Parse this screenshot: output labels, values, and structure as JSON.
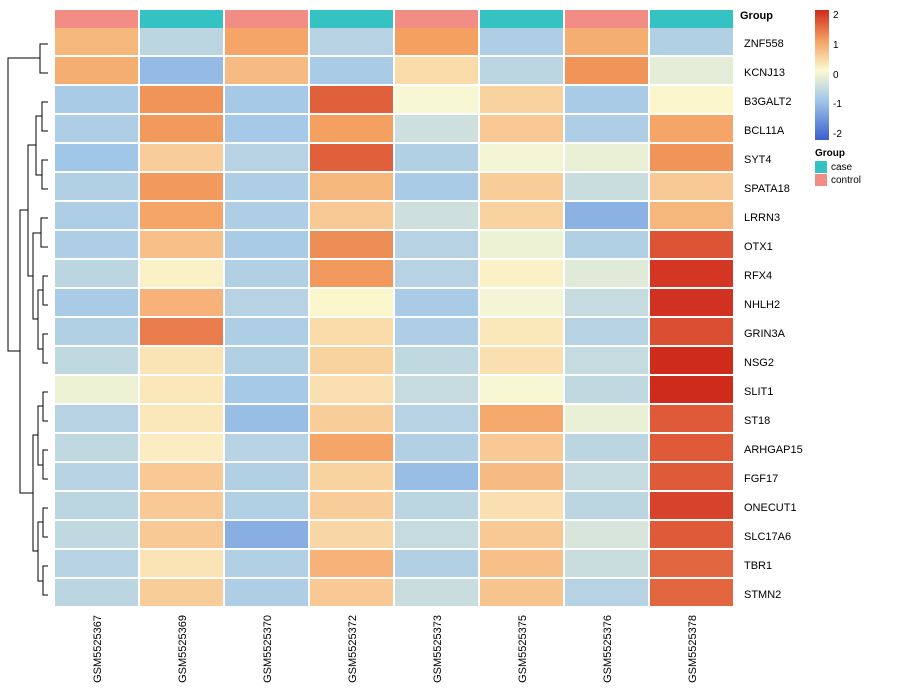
{
  "columns": [
    "GSM5525367",
    "GSM5525369",
    "GSM5525370",
    "GSM5525372",
    "GSM5525373",
    "GSM5525375",
    "GSM5525376",
    "GSM5525378"
  ],
  "column_groups": [
    "control",
    "case",
    "control",
    "case",
    "control",
    "case",
    "control",
    "case"
  ],
  "group_colors": {
    "case": "#35c2c2",
    "control": "#f28d86"
  },
  "group_title": "Group",
  "group_legend_items": [
    "case",
    "control"
  ],
  "rows": [
    "ZNF558",
    "KCNJ13",
    "B3GALT2",
    "BCL11A",
    "SYT4",
    "SPATA18",
    "LRRN3",
    "OTX1",
    "RFX4",
    "NHLH2",
    "GRIN3A",
    "NSG2",
    "SLIT1",
    "ST18",
    "ARHGAP15",
    "FGF17",
    "ONECUT1",
    "SLC17A6",
    "TBR1",
    "STMN2"
  ],
  "matrix": [
    [
      0.75,
      -0.7,
      0.95,
      -0.75,
      1.0,
      -0.85,
      0.85,
      -0.8
    ],
    [
      0.85,
      -1.15,
      0.7,
      -0.9,
      0.35,
      -0.7,
      1.1,
      -0.25
    ],
    [
      -0.9,
      1.1,
      -0.95,
      1.55,
      -0.05,
      0.45,
      -0.9,
      0.05
    ],
    [
      -0.85,
      1.05,
      -0.95,
      1.0,
      -0.5,
      0.55,
      -0.85,
      0.95
    ],
    [
      -1.0,
      0.5,
      -0.75,
      1.55,
      -0.8,
      -0.1,
      -0.2,
      1.1
    ],
    [
      -0.8,
      1.05,
      -0.85,
      0.75,
      -0.9,
      0.5,
      -0.55,
      0.55
    ],
    [
      -0.85,
      0.95,
      -0.85,
      0.55,
      -0.5,
      0.45,
      -1.25,
      0.75
    ],
    [
      -0.85,
      0.65,
      -0.9,
      1.15,
      -0.75,
      -0.15,
      -0.8,
      1.65
    ],
    [
      -0.7,
      0.1,
      -0.8,
      1.05,
      -0.75,
      0.1,
      -0.3,
      1.9
    ],
    [
      -0.9,
      0.8,
      -0.75,
      0.05,
      -0.9,
      -0.1,
      -0.6,
      1.95
    ],
    [
      -0.8,
      1.3,
      -0.85,
      0.35,
      -0.85,
      0.2,
      -0.75,
      1.7
    ],
    [
      -0.65,
      0.25,
      -0.8,
      0.45,
      -0.65,
      0.3,
      -0.6,
      2.0
    ],
    [
      -0.15,
      0.2,
      -0.95,
      0.3,
      -0.6,
      -0.05,
      -0.65,
      2.0
    ],
    [
      -0.75,
      0.2,
      -1.1,
      0.5,
      -0.75,
      0.9,
      -0.2,
      1.6
    ],
    [
      -0.65,
      0.15,
      -0.75,
      0.95,
      -0.8,
      0.55,
      -0.7,
      1.6
    ],
    [
      -0.75,
      0.55,
      -0.8,
      0.45,
      -1.1,
      0.7,
      -0.6,
      1.6
    ],
    [
      -0.7,
      0.55,
      -0.8,
      0.5,
      -0.7,
      0.3,
      -0.7,
      1.8
    ],
    [
      -0.65,
      0.55,
      -1.3,
      0.4,
      -0.6,
      0.55,
      -0.4,
      1.6
    ],
    [
      -0.75,
      0.25,
      -0.8,
      0.8,
      -0.8,
      0.65,
      -0.55,
      1.5
    ],
    [
      -0.7,
      0.5,
      -0.85,
      0.55,
      -0.55,
      0.6,
      -0.75,
      1.5
    ]
  ],
  "color_scale": {
    "min": -2.3,
    "max": 2.0,
    "ticks": [
      "2",
      "1",
      "0",
      "-1",
      "-2"
    ],
    "stops": [
      {
        "v": -2.3,
        "c": "#3a5fcd"
      },
      {
        "v": -1.0,
        "c": "#a0c6e8"
      },
      {
        "v": 0.0,
        "c": "#fcfad2"
      },
      {
        "v": 1.0,
        "c": "#f4a061"
      },
      {
        "v": 2.0,
        "c": "#cf2b1d"
      }
    ]
  },
  "dendrogram": {
    "svg_viewbox": "0 0 55 580",
    "stroke": "#000000",
    "width": 1,
    "paths": [
      "M48 14 H40 V43 H48",
      "M48 72 H42 V101 H48",
      "M48 130 H42 V159 H48",
      "M42 86 H36 V145 H42",
      "M48 188 H41 V217 H48",
      "M48 246 H43 V275 H48",
      "M48 304 H43 V333 H48",
      "M43 260 H38 V319 H38 H43",
      "M41 203 H33 V289 H38",
      "M36 115 H28 V246 H33",
      "M48 362 H43 V391 H48",
      "M48 420 H43 V449 H48",
      "M48 478 H43 V507 H48",
      "M48 536 H43 V565 H48",
      "M43 376 H38 V435 H43",
      "M43 492 H38 V551 H43",
      "M38 405 H33 V521 H38",
      "M28 180 H20 V463 H33",
      "M40 28 H8 V321 H20"
    ]
  }
}
